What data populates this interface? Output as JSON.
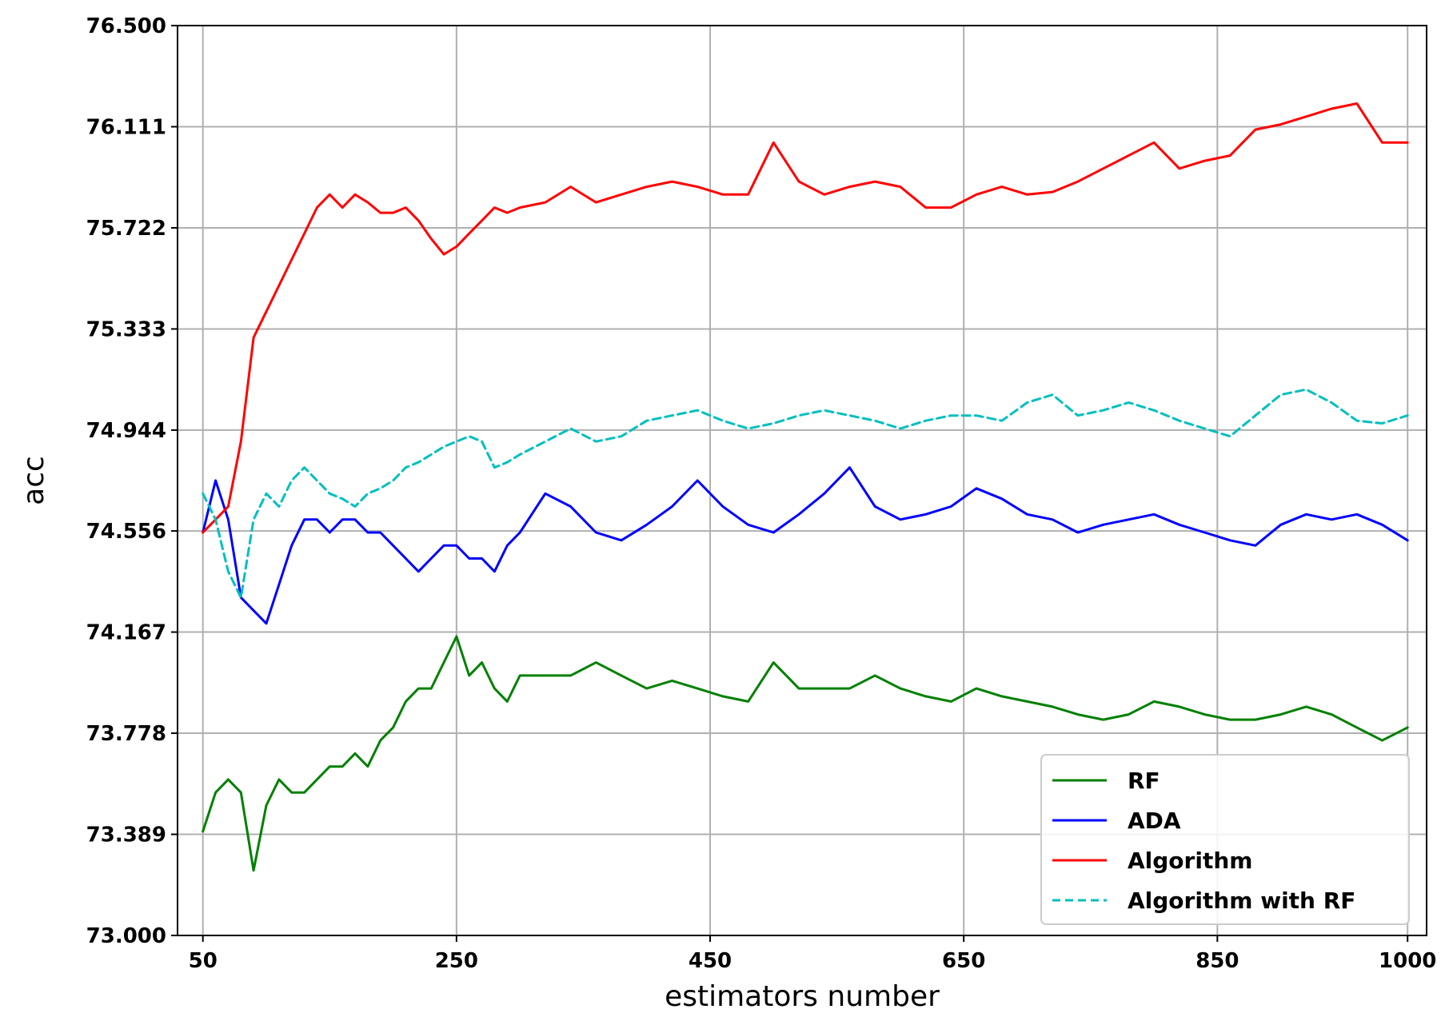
{
  "chart_data": {
    "type": "line",
    "xlabel": "estimators number",
    "ylabel": "acc",
    "xlim": [
      30,
      1015
    ],
    "ylim": [
      73.0,
      76.5
    ],
    "xticks": [
      50,
      250,
      450,
      650,
      850,
      1000
    ],
    "yticks": [
      73.0,
      73.389,
      73.778,
      74.167,
      74.556,
      74.944,
      75.333,
      75.722,
      76.111,
      76.5
    ],
    "ytick_labels": [
      "73.000",
      "73.389",
      "73.778",
      "74.167",
      "74.556",
      "74.944",
      "75.333",
      "75.722",
      "76.111",
      "76.500"
    ],
    "xtick_labels": [
      "50",
      "250",
      "450",
      "650",
      "850",
      "1000"
    ],
    "grid": true,
    "legend": "bottom-right",
    "series": [
      {
        "name": "RF",
        "color": "#008000",
        "dash": "solid",
        "x": [
          50,
          60,
          70,
          80,
          90,
          100,
          110,
          120,
          130,
          140,
          150,
          160,
          170,
          180,
          190,
          200,
          210,
          220,
          230,
          240,
          250,
          260,
          270,
          280,
          290,
          300,
          320,
          340,
          360,
          380,
          400,
          420,
          440,
          460,
          480,
          500,
          520,
          540,
          560,
          580,
          600,
          620,
          640,
          660,
          680,
          700,
          720,
          740,
          760,
          780,
          800,
          820,
          840,
          860,
          880,
          900,
          920,
          940,
          960,
          980,
          1000
        ],
        "y": [
          73.4,
          73.55,
          73.6,
          73.55,
          73.25,
          73.5,
          73.6,
          73.55,
          73.55,
          73.6,
          73.65,
          73.65,
          73.7,
          73.65,
          73.75,
          73.8,
          73.9,
          73.95,
          73.95,
          74.05,
          74.15,
          74.0,
          74.05,
          73.95,
          73.9,
          74.0,
          74.0,
          74.0,
          74.05,
          74.0,
          73.95,
          73.98,
          73.95,
          73.92,
          73.9,
          74.05,
          73.95,
          73.95,
          73.95,
          74.0,
          73.95,
          73.92,
          73.9,
          73.95,
          73.92,
          73.9,
          73.88,
          73.85,
          73.83,
          73.85,
          73.9,
          73.88,
          73.85,
          73.83,
          73.83,
          73.85,
          73.88,
          73.85,
          73.8,
          73.75,
          73.8
        ]
      },
      {
        "name": "ADA",
        "color": "#0000ff",
        "dash": "solid",
        "x": [
          50,
          60,
          70,
          80,
          90,
          100,
          110,
          120,
          130,
          140,
          150,
          160,
          170,
          180,
          190,
          200,
          210,
          220,
          230,
          240,
          250,
          260,
          270,
          280,
          290,
          300,
          320,
          340,
          360,
          380,
          400,
          420,
          440,
          460,
          480,
          500,
          520,
          540,
          560,
          580,
          600,
          620,
          640,
          660,
          680,
          700,
          720,
          740,
          760,
          780,
          800,
          820,
          840,
          860,
          880,
          900,
          920,
          940,
          960,
          980,
          1000
        ],
        "y": [
          74.55,
          74.75,
          74.6,
          74.3,
          74.25,
          74.2,
          74.35,
          74.5,
          74.6,
          74.6,
          74.55,
          74.6,
          74.6,
          74.55,
          74.55,
          74.5,
          74.45,
          74.4,
          74.45,
          74.5,
          74.5,
          74.45,
          74.45,
          74.4,
          74.5,
          74.55,
          74.7,
          74.65,
          74.55,
          74.52,
          74.58,
          74.65,
          74.75,
          74.65,
          74.58,
          74.55,
          74.62,
          74.7,
          74.8,
          74.65,
          74.6,
          74.62,
          74.65,
          74.72,
          74.68,
          74.62,
          74.6,
          74.55,
          74.58,
          74.6,
          74.62,
          74.58,
          74.55,
          74.52,
          74.5,
          74.58,
          74.62,
          74.6,
          74.62,
          74.58,
          74.52
        ]
      },
      {
        "name": "Algorithm",
        "color": "#ff0000",
        "dash": "solid",
        "x": [
          50,
          60,
          70,
          80,
          90,
          100,
          110,
          120,
          130,
          140,
          150,
          160,
          170,
          180,
          190,
          200,
          210,
          220,
          230,
          240,
          250,
          260,
          270,
          280,
          290,
          300,
          320,
          340,
          360,
          380,
          400,
          420,
          440,
          460,
          480,
          500,
          520,
          540,
          560,
          580,
          600,
          620,
          640,
          660,
          680,
          700,
          720,
          740,
          760,
          780,
          800,
          820,
          840,
          860,
          880,
          900,
          920,
          940,
          960,
          980,
          1000
        ],
        "y": [
          74.55,
          74.6,
          74.65,
          74.9,
          75.3,
          75.4,
          75.5,
          75.6,
          75.7,
          75.8,
          75.85,
          75.8,
          75.85,
          75.82,
          75.78,
          75.78,
          75.8,
          75.75,
          75.68,
          75.62,
          75.65,
          75.7,
          75.75,
          75.8,
          75.78,
          75.8,
          75.82,
          75.88,
          75.82,
          75.85,
          75.88,
          75.9,
          75.88,
          75.85,
          75.85,
          76.05,
          75.9,
          75.85,
          75.88,
          75.9,
          75.88,
          75.8,
          75.8,
          75.85,
          75.88,
          75.85,
          75.86,
          75.9,
          75.95,
          76.0,
          76.05,
          75.95,
          75.98,
          76.0,
          76.1,
          76.12,
          76.15,
          76.18,
          76.2,
          76.05,
          76.05
        ]
      },
      {
        "name": "Algorithm with RF",
        "color": "#00bfbf",
        "dash": "dashed",
        "x": [
          50,
          60,
          70,
          80,
          90,
          100,
          110,
          120,
          130,
          140,
          150,
          160,
          170,
          180,
          190,
          200,
          210,
          220,
          230,
          240,
          250,
          260,
          270,
          280,
          290,
          300,
          320,
          340,
          360,
          380,
          400,
          420,
          440,
          460,
          480,
          500,
          520,
          540,
          560,
          580,
          600,
          620,
          640,
          660,
          680,
          700,
          720,
          740,
          760,
          780,
          800,
          820,
          840,
          860,
          880,
          900,
          920,
          940,
          960,
          980,
          1000
        ],
        "y": [
          74.7,
          74.6,
          74.4,
          74.3,
          74.6,
          74.7,
          74.65,
          74.75,
          74.8,
          74.75,
          74.7,
          74.68,
          74.65,
          74.7,
          74.72,
          74.75,
          74.8,
          74.82,
          74.85,
          74.88,
          74.9,
          74.92,
          74.9,
          74.8,
          74.82,
          74.85,
          74.9,
          74.95,
          74.9,
          74.92,
          74.98,
          75.0,
          75.02,
          74.98,
          74.95,
          74.97,
          75.0,
          75.02,
          75.0,
          74.98,
          74.95,
          74.98,
          75.0,
          75.0,
          74.98,
          75.05,
          75.08,
          75.0,
          75.02,
          75.05,
          75.02,
          74.98,
          74.95,
          74.92,
          75.0,
          75.08,
          75.1,
          75.05,
          74.98,
          74.97,
          75.0
        ]
      }
    ]
  }
}
